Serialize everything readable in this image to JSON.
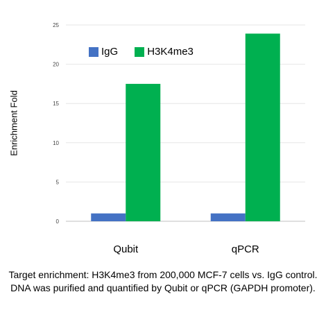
{
  "chart_data": {
    "type": "bar",
    "title": "",
    "xlabel": "",
    "ylabel": "Enrichment Fold",
    "categories": [
      "Qubit",
      "qPCR"
    ],
    "series": [
      {
        "name": "IgG",
        "color": "#4472C4",
        "values": [
          1.0,
          1.0
        ]
      },
      {
        "name": "H3K4me3",
        "color": "#00B050",
        "values": [
          17.5,
          23.9
        ]
      }
    ],
    "ylim": [
      0,
      25
    ],
    "yticks": [
      "0",
      "5",
      "10",
      "15",
      "20",
      "25"
    ],
    "grid": true,
    "legend_position": "top-left"
  },
  "caption": "Target enrichment: H3K4me3 from 200,000 MCF-7 cells vs. IgG control. DNA was purified and quantified by Qubit or qPCR (GAPDH promoter)."
}
